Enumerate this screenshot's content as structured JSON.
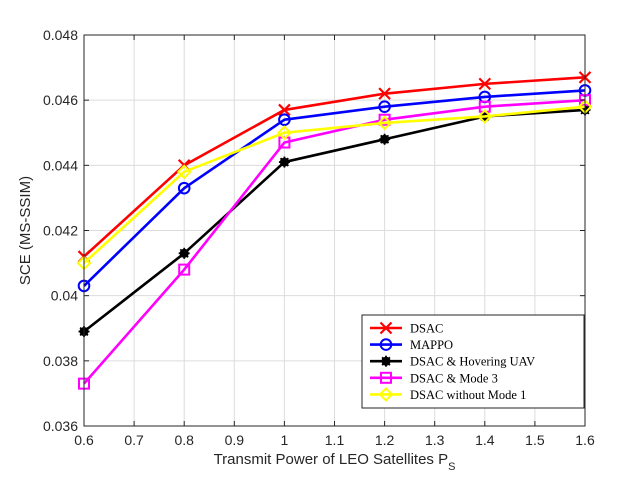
{
  "chart_data": {
    "type": "line",
    "title": "",
    "xlabel": "Transmit Power of LEO Satellites P",
    "xlabel_subscript": "S",
    "ylabel": "SCE (MS-SSIM)",
    "xlim": [
      0.6,
      1.6
    ],
    "ylim": [
      0.036,
      0.048
    ],
    "grid": true,
    "legend_position": "bottom-right",
    "x_ticks": [
      "0.6",
      "0.7",
      "0.8",
      "0.9",
      "1",
      "1.1",
      "1.2",
      "1.3",
      "1.4",
      "1.5",
      "1.6"
    ],
    "y_ticks": [
      "0.036",
      "0.038",
      "0.04",
      "0.042",
      "0.044",
      "0.046",
      "0.048"
    ],
    "x": [
      0.6,
      0.8,
      1.0,
      1.2,
      1.4,
      1.6
    ],
    "series": [
      {
        "name": "DSAC",
        "color": "#ff0000",
        "marker": "x",
        "values": [
          0.0412,
          0.044,
          0.0457,
          0.0462,
          0.0465,
          0.0467
        ]
      },
      {
        "name": "MAPPO",
        "color": "#0000ff",
        "marker": "circle",
        "values": [
          0.0403,
          0.0433,
          0.0454,
          0.0458,
          0.0461,
          0.0463
        ]
      },
      {
        "name": "DSAC & Hovering UAV",
        "color": "#000000",
        "marker": "asterisk",
        "values": [
          0.0389,
          0.0413,
          0.0441,
          0.0448,
          0.0455,
          0.0457
        ]
      },
      {
        "name": "DSAC & Mode 3",
        "color": "#ff00ff",
        "marker": "square",
        "values": [
          0.0373,
          0.0408,
          0.0447,
          0.0454,
          0.0458,
          0.046
        ]
      },
      {
        "name": "DSAC without Mode 1",
        "color": "#ffff00",
        "marker": "diamond",
        "values": [
          0.041,
          0.0438,
          0.045,
          0.0453,
          0.0455,
          0.0458
        ]
      }
    ]
  }
}
